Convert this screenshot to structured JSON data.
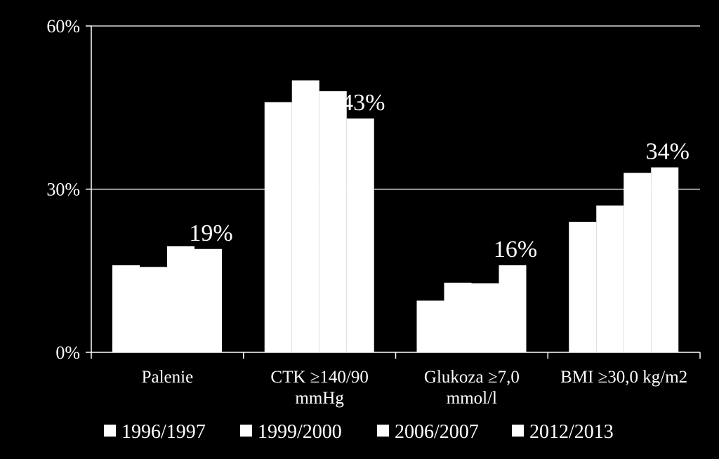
{
  "chart_data": {
    "type": "bar",
    "categories": [
      [
        "Palenie"
      ],
      [
        "CTK ≥140/90",
        "mmHg"
      ],
      [
        "Glukoza ≥7,0",
        "mmol/l"
      ],
      [
        "BMI ≥30,0 kg/m2"
      ]
    ],
    "series": [
      {
        "name": "1996/1997",
        "values": [
          16,
          46,
          9.5,
          24
        ]
      },
      {
        "name": "1999/2000",
        "values": [
          15.7,
          50,
          12.8,
          27
        ]
      },
      {
        "name": "2006/2007",
        "values": [
          19.5,
          48,
          12.7,
          33
        ]
      },
      {
        "name": "2012/2013",
        "values": [
          19,
          43,
          16,
          34
        ]
      }
    ],
    "data_labels": [
      "19%",
      "43%",
      "16%",
      "34%"
    ],
    "y_ticks": [
      "0%",
      "30%",
      "60%"
    ],
    "y_tick_values": [
      0,
      30,
      60
    ],
    "ylim": [
      0,
      60
    ],
    "grid": true,
    "legend_position": "bottom",
    "colors": {
      "background": "#000000",
      "bars": "#ffffff",
      "grid": "#ffffff"
    }
  }
}
